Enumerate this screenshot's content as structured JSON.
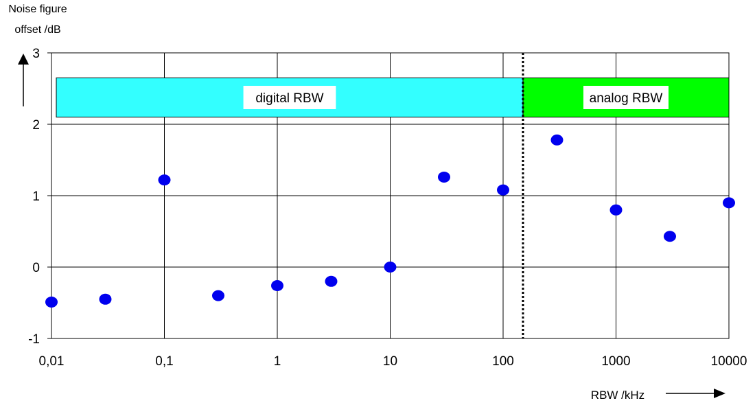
{
  "chart_data": {
    "type": "scatter",
    "title": "",
    "ylabel": [
      "Noise figure",
      "offset /dB"
    ],
    "xlabel": "RBW /kHz",
    "x_scale": "log",
    "xlim": [
      0.01,
      10000
    ],
    "ylim": [
      -1,
      3
    ],
    "x_ticks": [
      {
        "value": 0.01,
        "label": "0,01"
      },
      {
        "value": 0.1,
        "label": "0,1"
      },
      {
        "value": 1,
        "label": "1"
      },
      {
        "value": 10,
        "label": "10"
      },
      {
        "value": 100,
        "label": "100"
      },
      {
        "value": 1000,
        "label": "1000"
      },
      {
        "value": 10000,
        "label": "10000"
      }
    ],
    "y_ticks": [
      {
        "value": -1,
        "label": "-1"
      },
      {
        "value": 0,
        "label": "0"
      },
      {
        "value": 1,
        "label": "1"
      },
      {
        "value": 2,
        "label": "2"
      },
      {
        "value": 3,
        "label": "3"
      }
    ],
    "grid": true,
    "series": [
      {
        "color": "#0000ee",
        "x": [
          0.01,
          0.03,
          0.1,
          0.3,
          1,
          3,
          10,
          30,
          100,
          300,
          1000,
          3000,
          10000
        ],
        "y": [
          -0.49,
          -0.45,
          1.22,
          -0.4,
          -0.26,
          -0.2,
          0.0,
          1.26,
          1.08,
          1.78,
          0.8,
          0.43,
          0.9
        ]
      }
    ],
    "regions": [
      {
        "label": "digital RBW",
        "x_start": 0.01,
        "x_end": 150,
        "color": "#33ffff"
      },
      {
        "label": "analog RBW",
        "x_start": 150,
        "x_end": 10000,
        "color": "#00ff00"
      }
    ],
    "divider_x": 150
  }
}
